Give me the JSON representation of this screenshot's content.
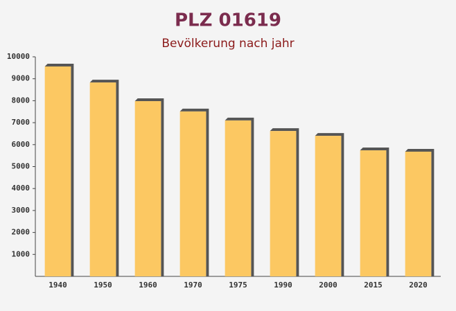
{
  "chart_data": {
    "type": "bar",
    "title": "PLZ 01619",
    "subtitle": "Bevölkerung nach jahr",
    "categories": [
      "1940",
      "1950",
      "1960",
      "1970",
      "1975",
      "1990",
      "2000",
      "2015",
      "2020"
    ],
    "values": [
      9560,
      8830,
      7980,
      7510,
      7100,
      6620,
      6400,
      5740,
      5680
    ],
    "color": "#fcc862",
    "ylim": [
      0,
      10000
    ],
    "yticks": [
      1000,
      2000,
      3000,
      4000,
      5000,
      6000,
      7000,
      8000,
      9000,
      10000
    ],
    "grid": false
  }
}
